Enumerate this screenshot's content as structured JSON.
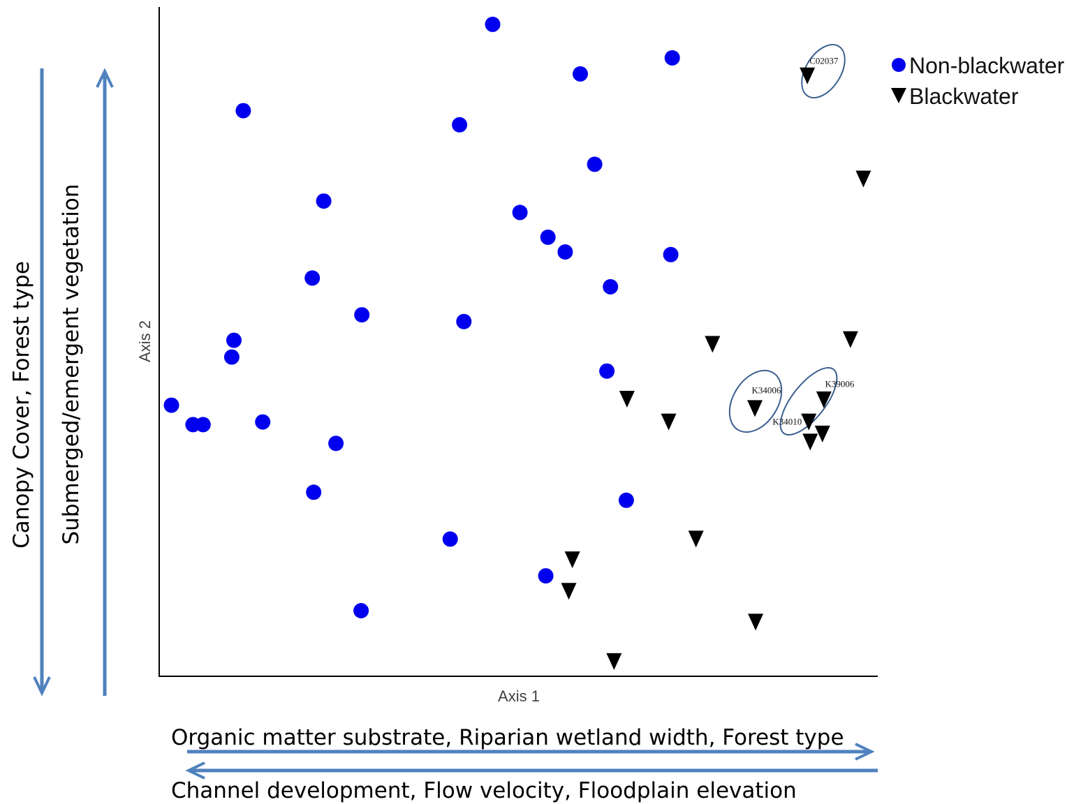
{
  "colors": {
    "non_blackwater": "#0000ee",
    "blackwater": "#000000",
    "arrow": "#4f81bd",
    "highlight_ellipse": "#3a5f8f",
    "axis": "#000000"
  },
  "labels": {
    "axis1": "Axis 1",
    "axis2": "Axis 2",
    "x_gradient_positive": "Organic matter substrate, Riparian wetland width, Forest type",
    "x_gradient_negative": "Channel development, Flow velocity, Floodplain elevation",
    "y_gradient_outer": "Canopy Cover, Forest type",
    "y_gradient_inner": "Submerged/emergent vegetation"
  },
  "legend": [
    {
      "name": "Non-blackwater",
      "marker": "circle"
    },
    {
      "name": "Blackwater",
      "marker": "triangle-down"
    }
  ],
  "chart_data": {
    "type": "scatter",
    "title": "",
    "xlabel": "Axis 1",
    "ylabel": "Axis 2",
    "xlim": [
      0,
      100
    ],
    "ylim": [
      0,
      100
    ],
    "ticks": "none",
    "grid": false,
    "legend_position": "top-right",
    "series": [
      {
        "name": "Non-blackwater",
        "marker": "circle",
        "points": [
          [
            46.4,
            97.4
          ],
          [
            71.4,
            92.4
          ],
          [
            58.6,
            90.0
          ],
          [
            11.7,
            84.5
          ],
          [
            41.8,
            82.4
          ],
          [
            60.6,
            76.5
          ],
          [
            22.9,
            71.0
          ],
          [
            50.2,
            69.3
          ],
          [
            54.1,
            65.6
          ],
          [
            56.5,
            63.4
          ],
          [
            71.2,
            63.0
          ],
          [
            62.8,
            58.2
          ],
          [
            21.3,
            59.5
          ],
          [
            28.2,
            54.0
          ],
          [
            42.4,
            53.0
          ],
          [
            10.4,
            50.2
          ],
          [
            10.1,
            47.7
          ],
          [
            62.3,
            45.6
          ],
          [
            1.7,
            40.5
          ],
          [
            4.7,
            37.6
          ],
          [
            6.1,
            37.6
          ],
          [
            14.4,
            38.0
          ],
          [
            24.6,
            34.8
          ],
          [
            21.5,
            27.5
          ],
          [
            65.0,
            26.3
          ],
          [
            40.5,
            20.5
          ],
          [
            53.8,
            15.0
          ],
          [
            28.1,
            9.8
          ]
        ]
      },
      {
        "name": "Blackwater",
        "marker": "triangle-down",
        "points": [
          [
            90.2,
            89.7
          ],
          [
            98.0,
            74.3
          ],
          [
            96.2,
            50.3
          ],
          [
            77.0,
            49.6
          ],
          [
            65.1,
            41.4
          ],
          [
            70.9,
            38.0
          ],
          [
            82.9,
            40.0
          ],
          [
            92.5,
            41.3
          ],
          [
            90.4,
            38.0
          ],
          [
            92.3,
            36.2
          ],
          [
            90.6,
            35.0
          ],
          [
            74.7,
            20.5
          ],
          [
            57.5,
            17.4
          ],
          [
            57.0,
            12.7
          ],
          [
            83.0,
            8.1
          ],
          [
            63.3,
            2.2
          ]
        ]
      }
    ],
    "annotations": [
      {
        "text": "C02037",
        "x": 92.5,
        "y": 91.5
      },
      {
        "text": "K34006",
        "x": 84.5,
        "y": 42.3
      },
      {
        "text": "K39006",
        "x": 94.7,
        "y": 43.2
      },
      {
        "text": "K34010",
        "x": 87.4,
        "y": 37.6
      }
    ]
  }
}
